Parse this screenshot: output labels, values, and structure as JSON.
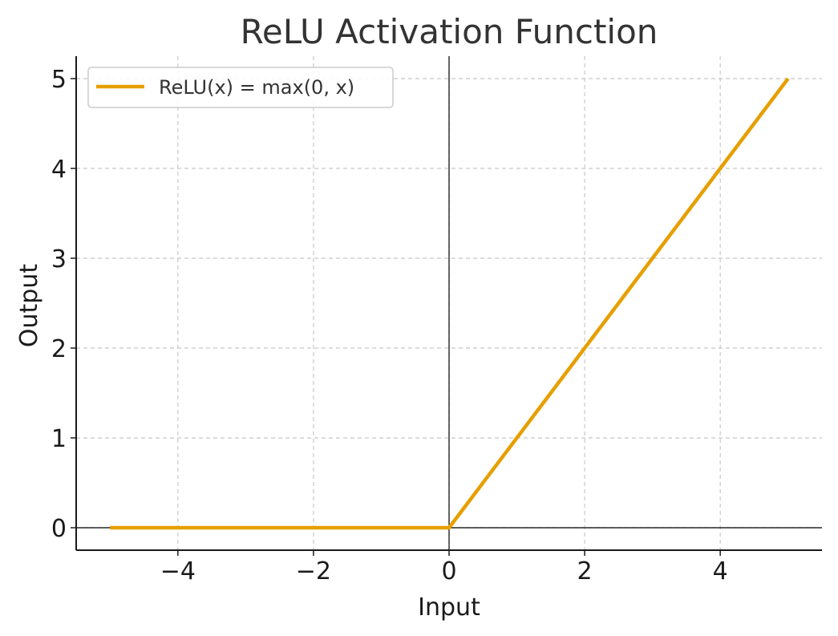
{
  "chart_data": {
    "type": "line",
    "title": "ReLU Activation Function",
    "xlabel": "Input",
    "ylabel": "Output",
    "xlim": [
      -5.5,
      5.5
    ],
    "ylim": [
      -0.25,
      5.25
    ],
    "xticks": [
      -4,
      -2,
      0,
      2,
      4
    ],
    "xtick_labels": [
      "−4",
      "−2",
      "0",
      "2",
      "4"
    ],
    "yticks": [
      0,
      1,
      2,
      3,
      4,
      5
    ],
    "ytick_labels": [
      "0",
      "1",
      "2",
      "3",
      "4",
      "5"
    ],
    "grid": true,
    "legend_position": "top-left",
    "reference_lines": {
      "x": 0,
      "y": 0
    },
    "series": [
      {
        "name": "ReLU(x) = max(0, x)",
        "color": "#E69F00",
        "x": [
          -5,
          0,
          5
        ],
        "y": [
          0,
          0,
          5
        ]
      }
    ]
  }
}
